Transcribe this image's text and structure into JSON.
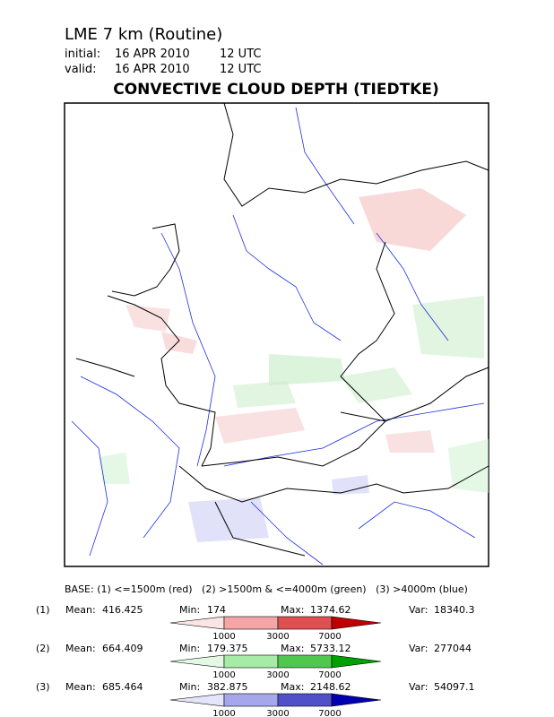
{
  "header": {
    "title": "LME 7 km (Routine)",
    "initial_label": "initial:",
    "initial_date": "16 APR 2010",
    "initial_time": "12 UTC",
    "valid_label": "valid:",
    "valid_date": "16 APR 2010",
    "valid_time": "12 UTC"
  },
  "map": {
    "title": "CONVECTIVE CLOUD DEPTH (TIEDTKE)"
  },
  "legend": {
    "base": "BASE: (1) <=1500m (red)   (2) >1500m & <=4000m (green)   (3) >4000m (blue)",
    "labels": {
      "mean": "Mean:",
      "min": "Min:",
      "max": "Max:",
      "var": "Var:"
    },
    "ticks": [
      "1000",
      "3000",
      "7000"
    ],
    "rows": [
      {
        "index": "(1)",
        "mean": "416.425",
        "min": "174",
        "max": "1374.62",
        "var": "18340.3",
        "colors": [
          "#fbe4e4",
          "#f4a6a6",
          "#e05050",
          "#c00000"
        ]
      },
      {
        "index": "(2)",
        "mean": "664.409",
        "min": "179.375",
        "max": "5733.12",
        "var": "277044",
        "colors": [
          "#e4f8e4",
          "#a6eca6",
          "#50c850",
          "#00a000"
        ]
      },
      {
        "index": "(3)",
        "mean": "685.464",
        "min": "382.875",
        "max": "2148.62",
        "var": "54097.1",
        "colors": [
          "#e4e4fb",
          "#a6a6ec",
          "#5050c8",
          "#0000b0"
        ]
      }
    ]
  }
}
